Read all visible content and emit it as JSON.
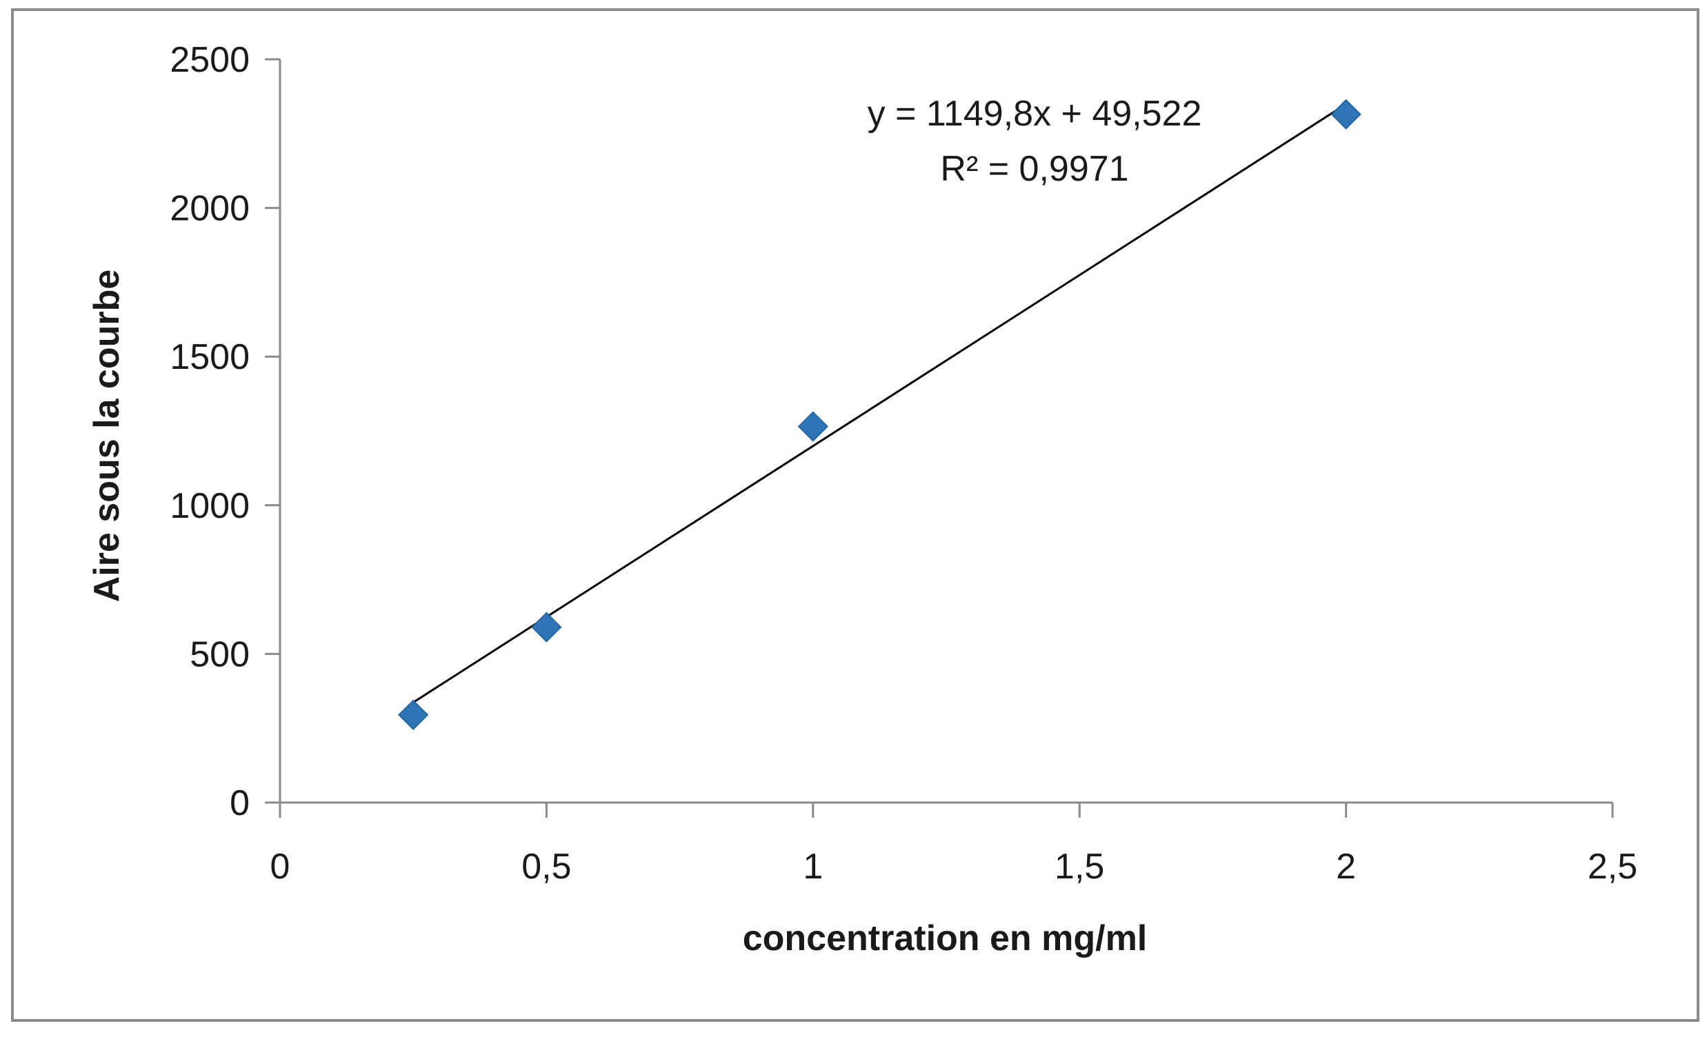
{
  "chart_data": {
    "type": "scatter",
    "xlabel": "concentration en mg/ml",
    "ylabel": "Aire sous la courbe",
    "xlim": [
      0,
      2.5
    ],
    "ylim": [
      0,
      2500
    ],
    "x_ticks": [
      "0",
      "0,5",
      "1",
      "1,5",
      "2",
      "2,5"
    ],
    "y_ticks": [
      "0",
      "500",
      "1000",
      "1500",
      "2000",
      "2500"
    ],
    "grid": false,
    "legend": "none",
    "series": [
      {
        "x": [
          0.25,
          0.5,
          1,
          2
        ],
        "y": [
          295,
          590,
          1265,
          2315
        ],
        "color": "#2e75b6",
        "marker": "diamond"
      }
    ],
    "trendline": {
      "slope": 1149.8,
      "intercept": 49.522,
      "x_range": [
        0.25,
        2
      ],
      "color": "#000000",
      "equation": "y = 1149,8x + 49,522",
      "r_squared": "R² = 0,9971"
    }
  }
}
